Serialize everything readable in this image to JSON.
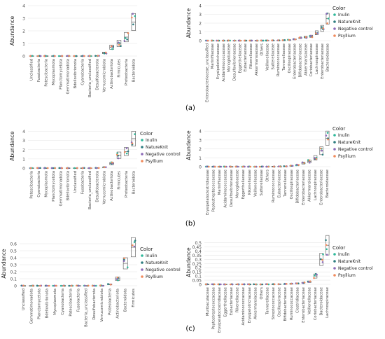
{
  "row_labels": [
    "(a)",
    "(b)",
    "(c)"
  ],
  "legend": {
    "title": "Color",
    "items": [
      {
        "label": "Inulin",
        "color": "#2fb89a"
      },
      {
        "label": "NatureKnit",
        "color": "#2e7d80"
      },
      {
        "label": "Negative control",
        "color": "#8d6bb8"
      },
      {
        "label": "Psyllium",
        "color": "#f08a5c"
      }
    ]
  },
  "chart_data": [
    {
      "type": "box",
      "panel": "a-left",
      "ylabel": "Abundance",
      "yticks": [
        "0",
        "1",
        "2",
        "3",
        "4"
      ],
      "ytick_values": [
        0,
        10,
        20,
        30,
        40
      ],
      "ylim": [
        0,
        40
      ],
      "yticks_note": "",
      "categories": [
        "Unclassified",
        "Fusobacteria",
        "Patescibacteria",
        "Mycoplasmota",
        "Planctomycetota",
        "Gemmatimonadota",
        "Bdellovibrionota",
        "Cyanobacteria",
        "Bacteria_unclassified",
        "Desulfobacterota",
        "Verrucomicrobiota",
        "Actinobacteriota",
        "Firmicutes",
        "Proteobacteria",
        "Bacteroidota"
      ],
      "values": [
        0,
        0,
        0,
        0,
        0,
        0,
        0,
        0,
        0,
        0.2,
        2.5,
        7,
        10,
        15,
        27
      ]
    },
    {
      "type": "box",
      "panel": "a-right",
      "ylabel": "Abundance",
      "yticks": [
        "0",
        "1",
        "2",
        "3",
        "4"
      ],
      "ytick_values": [
        0,
        10,
        20,
        30,
        40
      ],
      "ylim": [
        0,
        40
      ],
      "categories": [
        "Enterobacteriaceae_unclassified",
        "Marinifilaceae",
        "Erysipelotrichaceae",
        "Acidaminococcaceae",
        "Monoglobaceae",
        "Desulfovibrionaceae",
        "Eggerthellaceae",
        "Eubacteriaceae",
        "Rikenellaceae",
        "Akkermansiaceae",
        "Others",
        "Veillonellaceae",
        "Sutterellaceae",
        "Ruminococcaceae",
        "Tannerellaceae",
        "Oscillospiraceae",
        "Enterobacteriaceae",
        "Bifidobacteriaceae",
        "Akkermansiaceae",
        "Coriobacteriaceae",
        "Lachnospiraceae",
        "Enterobacteriaceae",
        "Bacteroidaceae"
      ],
      "values": [
        0,
        0,
        0,
        0,
        0,
        0,
        0,
        0,
        0,
        0,
        0.1,
        0.1,
        0.2,
        0.3,
        0.5,
        0.8,
        1.5,
        3,
        4,
        5,
        9,
        14,
        25
      ]
    },
    {
      "type": "box",
      "panel": "b-left",
      "ylabel": "Abundance",
      "yticks": [
        "0",
        "1",
        "2",
        "3",
        "4"
      ],
      "ytick_values": [
        0,
        10,
        20,
        30,
        40
      ],
      "ylim": [
        0,
        48
      ],
      "categories": [
        "Patescibacteria",
        "Cyanobacteria",
        "Mycoplasmota",
        "Planctomycetota",
        "Gemmatimonadota",
        "Bdellovibrionota",
        "Unclassified",
        "Fusobacteria",
        "Bacteria_unclassified",
        "Desulfobacterota",
        "Verrucomicrobiota",
        "Actinobacteriota",
        "Firmicutes",
        "Proteobacteria",
        "Bacteroidota"
      ],
      "values": [
        0,
        0,
        0,
        0,
        0,
        0,
        0,
        0,
        0,
        0.2,
        1,
        5,
        14,
        18,
        32
      ]
    },
    {
      "type": "box",
      "panel": "b-right",
      "ylabel": "Abundance",
      "yticks": [
        "0",
        "1",
        "2",
        "3",
        "4"
      ],
      "ytick_values": [
        0,
        10,
        20,
        30,
        40
      ],
      "ylim": [
        0,
        48
      ],
      "categories": [
        "Erysipelatoclostridiaceae",
        "Peptostreptococcaceae",
        "Marinifilaceae",
        "Acidaminococcaceae",
        "Desulfovibrionaceae",
        "Monoglobaceae",
        "Eggerthellaceae",
        "Rikenellaceae",
        "Veillonellaceae",
        "Sutterellaceae",
        "Others",
        "Ruminococcaceae",
        "Eubacteriaceae",
        "Tannerellaceae",
        "Oscillospiraceae",
        "Bifidobacteriaceae",
        "Enterobacteriaceae",
        "Akkermansiaceae",
        "Lachnospiraceae",
        "Enterobacteriaceae",
        "Bacteroidaceae"
      ],
      "values": [
        0,
        0,
        0,
        0,
        0,
        0,
        0,
        0,
        0,
        0,
        0.1,
        0.2,
        0.3,
        0.5,
        1,
        2,
        4,
        6,
        10,
        18,
        32
      ]
    },
    {
      "type": "box",
      "panel": "c-left",
      "ylabel": "Abundance",
      "yticks": [
        "0",
        "0.1",
        "0.2",
        "0.3",
        "0.4",
        "0.5",
        "0.6"
      ],
      "ytick_values": [
        0,
        0.1,
        0.2,
        0.3,
        0.4,
        0.5,
        0.6
      ],
      "ylim": [
        0,
        0.63
      ],
      "categories": [
        "Unclassified",
        "Gemmatimonadota",
        "Planctomycetota",
        "Bdellovibrionota",
        "Mycoplasmota",
        "Cyanobacteria",
        "Patescibacteria",
        "Fusobacteria",
        "Bacteria_unclassified",
        "Desulfobacterota",
        "Verrucomicrobiota",
        "Proteobacteria",
        "Actinobacteriota",
        "Bacteroidota",
        "Firmicutes"
      ],
      "values": [
        0,
        0,
        0,
        0,
        0,
        0,
        0,
        0,
        0,
        0,
        0.002,
        0.02,
        0.1,
        0.32,
        0.55
      ]
    },
    {
      "type": "box",
      "panel": "c-right",
      "ylabel": "Abundance",
      "yticks": [
        "0",
        "0.05",
        "0.1",
        "0.15",
        "0.2",
        "0.25",
        "0.3",
        "0.35",
        "0.4",
        "0.45",
        "0.5"
      ],
      "ytick_values": [
        0,
        0.05,
        0.1,
        0.15,
        0.2,
        0.25,
        0.3,
        0.35,
        0.4,
        0.45,
        0.5
      ],
      "ylim": [
        0,
        0.53
      ],
      "categories": [
        "Muribaculaceae",
        "Peptostreptococcaceae",
        "Erysipelatoclostridiaceae",
        "Eggerthellaceae",
        "Eubacteriaceae",
        "Rikenellaceae",
        "Acidaminococcaceae",
        "Erysipelotrichaceae",
        "Akkermansiaceae",
        "Others",
        "Tannerellaceae",
        "Streptococcaceae",
        "Oscillospiraceae",
        "Bifidobacteriaceae",
        "Ruminococcaceae",
        "Clostridiaceae",
        "Enterobacteriaceae",
        "Veillonellaceae",
        "Coriobacteriaceae",
        "Bacteroidaceae",
        "Lachnospiraceae"
      ],
      "values": [
        0,
        0,
        0,
        0,
        0,
        0,
        0,
        0,
        0,
        0,
        0.001,
        0.002,
        0.003,
        0.005,
        0.008,
        0.012,
        0.02,
        0.03,
        0.1,
        0.3,
        0.47
      ]
    }
  ]
}
